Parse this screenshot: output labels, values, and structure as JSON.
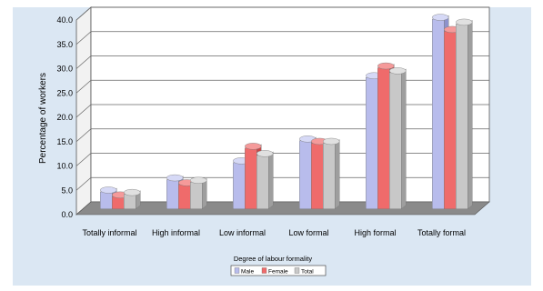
{
  "chart_data": {
    "type": "bar",
    "title": "",
    "xlabel": "Degree of labour formality",
    "ylabel": "Percentage of workers",
    "categories": [
      "Totally informal",
      "High informal",
      "Low informal",
      "Low formal",
      "High formal",
      "Totally formal"
    ],
    "series": [
      {
        "name": "Male",
        "values": [
          3.5,
          6.0,
          9.5,
          14.0,
          27.0,
          39.0
        ]
      },
      {
        "name": "Female",
        "values": [
          2.5,
          5.0,
          12.5,
          13.5,
          29.0,
          36.5
        ]
      },
      {
        "name": "Total",
        "values": [
          3.0,
          5.5,
          11.0,
          13.5,
          28.0,
          38.0
        ]
      }
    ],
    "ylim": [
      0,
      40
    ],
    "yticks": [
      "0.0",
      "5.0",
      "10.0",
      "15.0",
      "20.0",
      "25.0",
      "30.0",
      "35.0",
      "40.0"
    ],
    "grid": true,
    "legend_position": "bottom-center",
    "colors": {
      "male_front": "#b8bcec",
      "male_side": "#8d92cc",
      "male_top": "#d6d9f6",
      "female_front": "#ef6b6b",
      "female_side": "#c84747",
      "female_top": "#f59a9a",
      "total_front": "#c8c8c8",
      "total_side": "#9e9e9e",
      "total_top": "#e0e0e0",
      "floor": "#8a8a8a",
      "wall": "#ffffff",
      "panel": "#dbe7f3"
    }
  }
}
